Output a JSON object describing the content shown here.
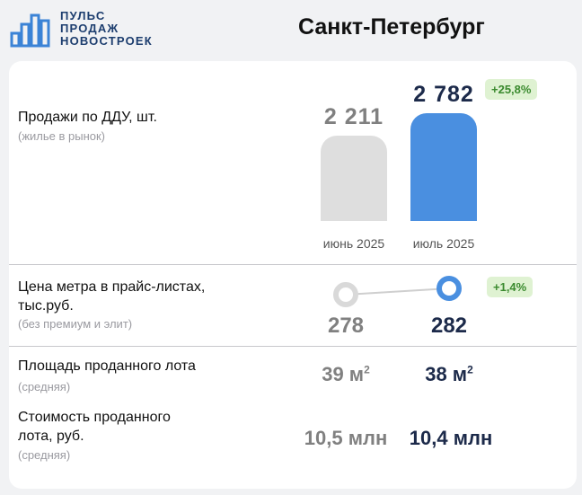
{
  "header": {
    "logo_lines": [
      "ПУЛЬС",
      "ПРОДАЖ",
      "НОВОСТРОЕК"
    ],
    "city": "Санкт-Петербург"
  },
  "colors": {
    "accent": "#4a8fe0",
    "previous": "#dedede",
    "badge_bg": "#dff2d2",
    "badge_text": "#3a8a2e",
    "dark_value": "#1c2a4a",
    "logo": "#1c3d6e"
  },
  "sales": {
    "label": "Продажи по ДДУ, шт.",
    "sublabel": "(жилье в рынок)",
    "previous": {
      "period": "июнь 2025",
      "value_text": "2 211",
      "value": 2211
    },
    "current": {
      "period": "июль 2025",
      "value_text": "2 782",
      "value": 2782
    },
    "change": "+25,8%"
  },
  "price": {
    "label_lines": [
      "Цена метра в прайс-листах,",
      "тыс.руб."
    ],
    "sublabel": "(без премиум и элит)",
    "previous": "278",
    "current": "282",
    "change": "+1,4%"
  },
  "area": {
    "label": "Площадь проданного лота",
    "sublabel": "(средняя)",
    "previous": "39 м",
    "current": "38 м",
    "unit_power": "2"
  },
  "cost": {
    "label_lines": [
      "Стоимость проданного",
      "лота, руб."
    ],
    "sublabel": "(средняя)",
    "previous": "10,5 млн",
    "current": "10,4 млн"
  }
}
